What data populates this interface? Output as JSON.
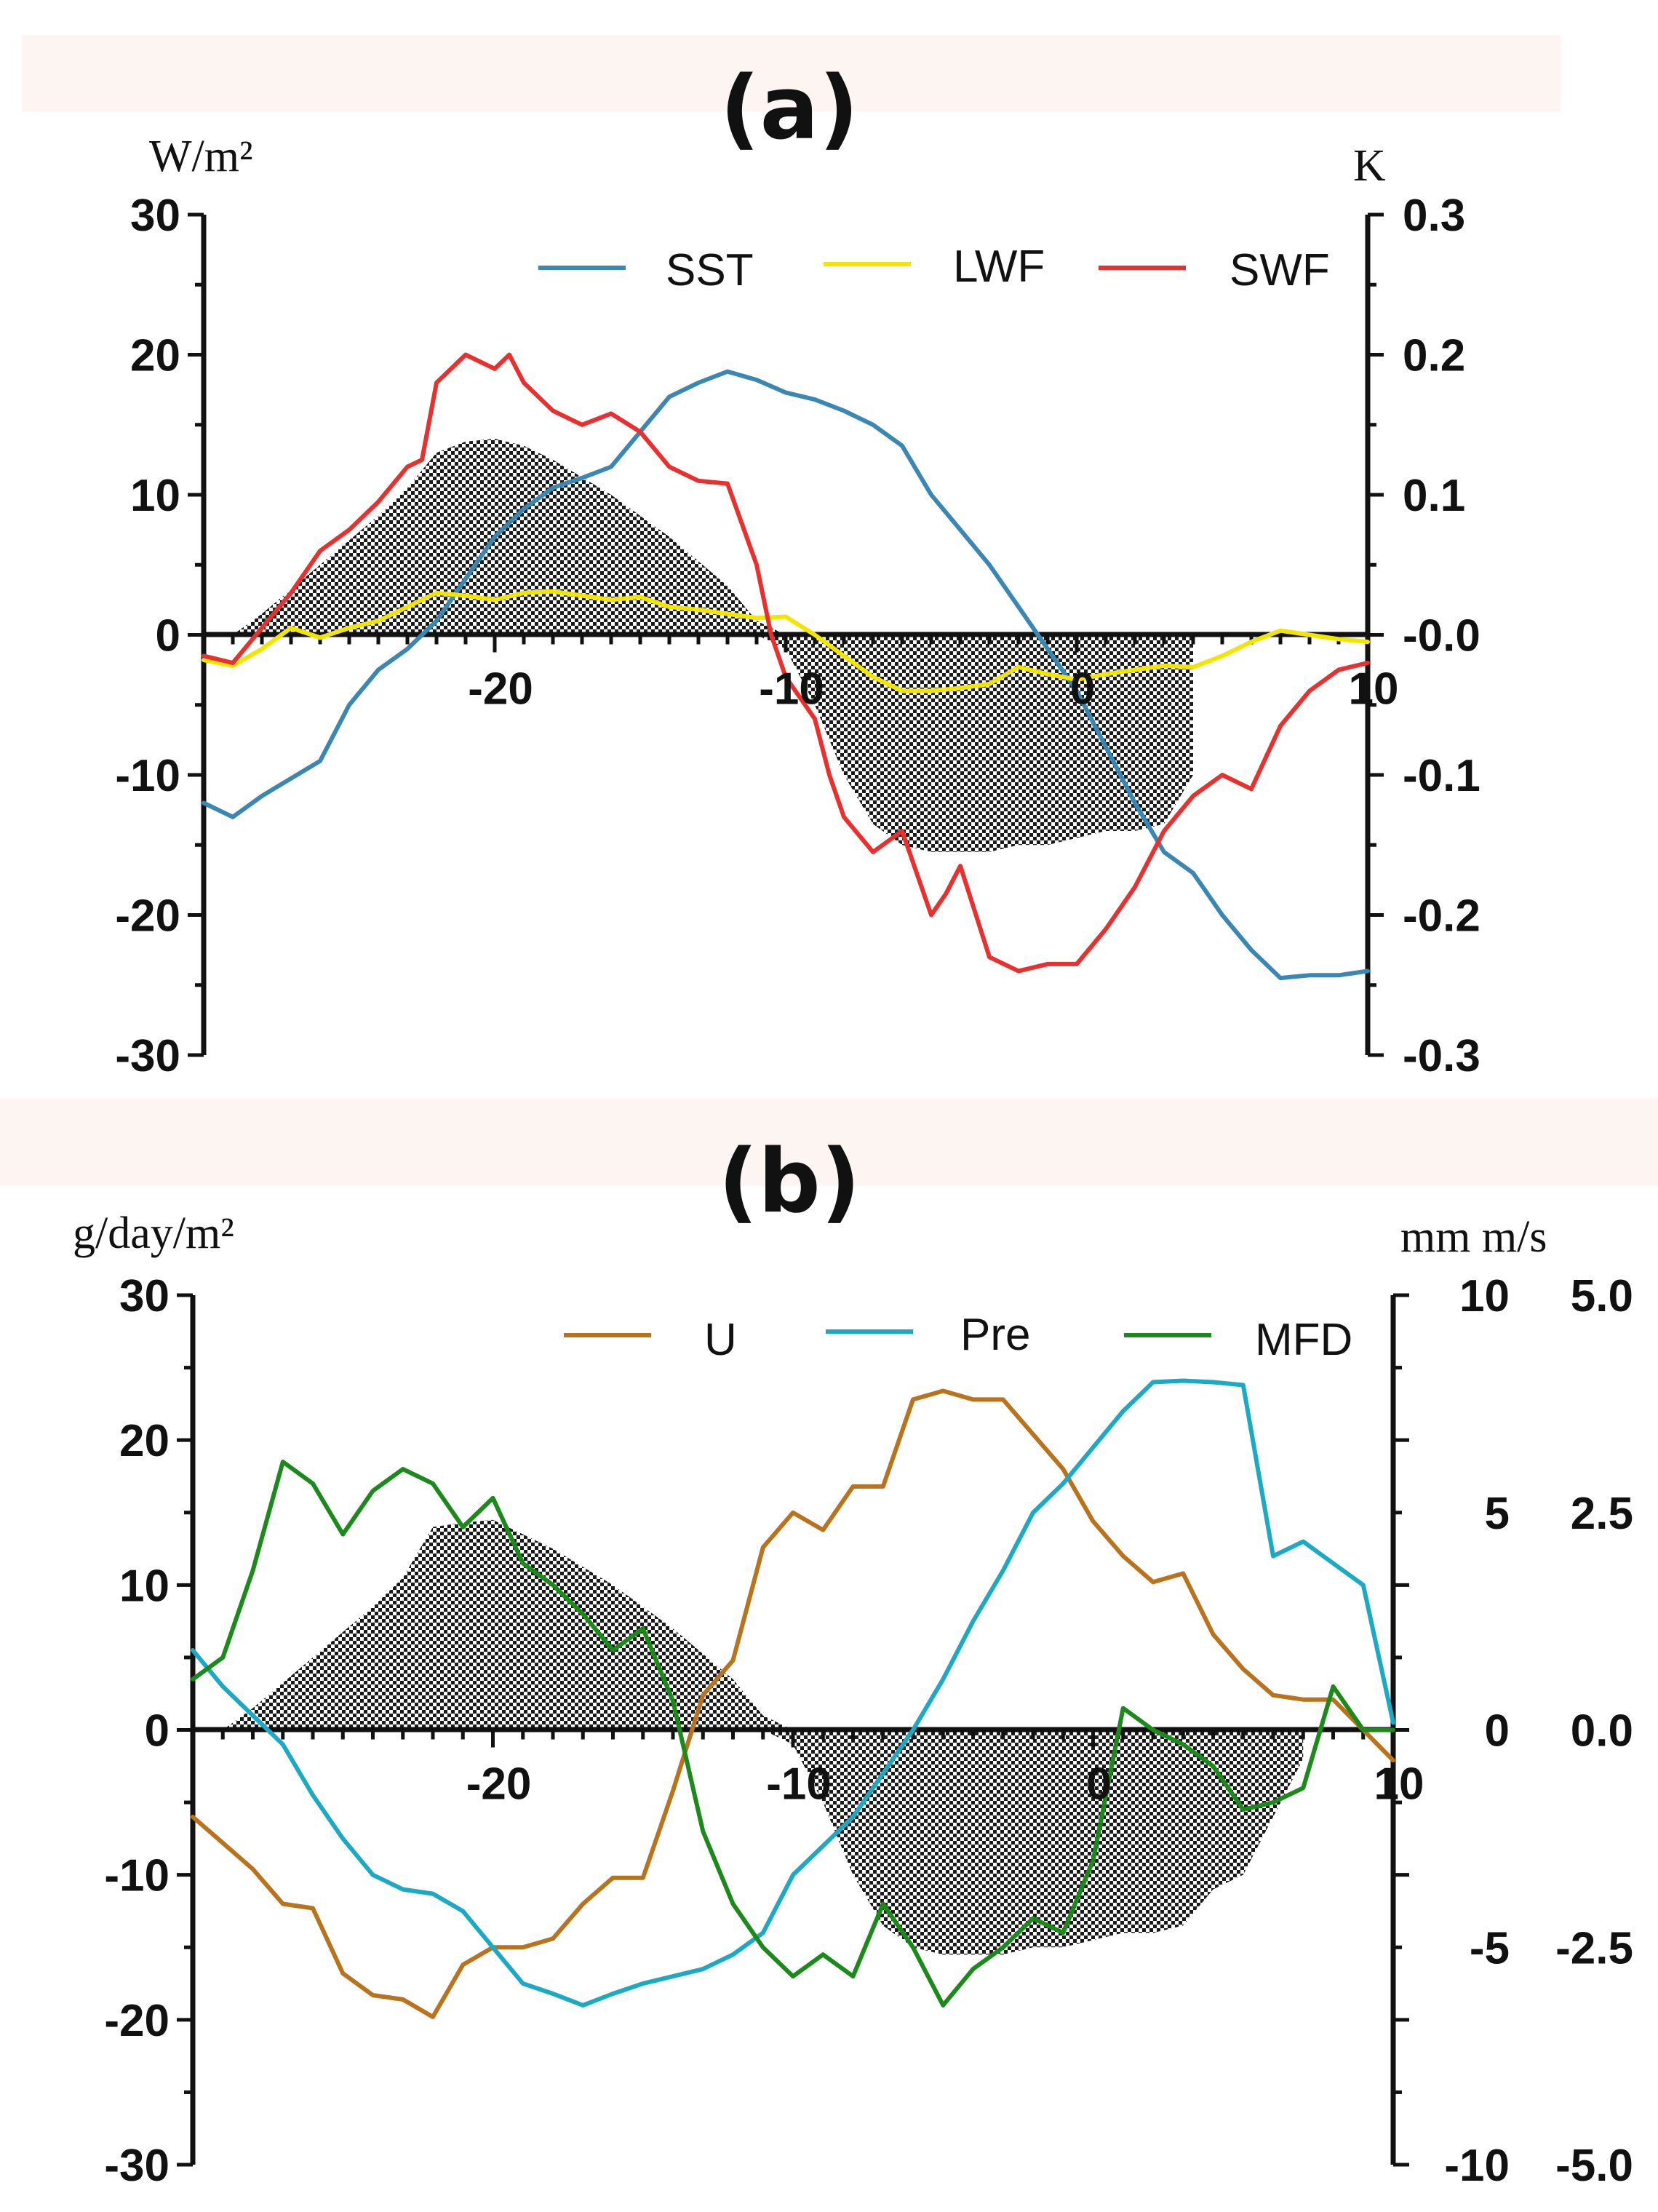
{
  "chart_data": [
    {
      "type": "line",
      "panel_label": "(a)",
      "left_unit": "W/m²",
      "right_unit": "K",
      "xlim": [
        -30,
        10
      ],
      "ylim_left": [
        -30,
        30
      ],
      "ylim_right": [
        -0.3,
        0.3
      ],
      "x_ticks": [
        -20,
        -10,
        0,
        10
      ],
      "x_tick_labels": [
        "-20",
        "-10",
        "0",
        "10"
      ],
      "y_left_ticks": [
        30,
        20,
        10,
        0,
        -10,
        -20,
        -30
      ],
      "y_left_tick_labels": [
        "30",
        "20",
        "10",
        "0",
        "-10",
        "-20",
        "-30"
      ],
      "y_right_ticks": [
        0.3,
        0.2,
        0.1,
        0.0,
        -0.1,
        -0.2,
        -0.3
      ],
      "y_right_tick_labels": [
        "0.3",
        "0.2",
        "0.1",
        "-0.0",
        "-0.1",
        "-0.2",
        "-0.3"
      ],
      "legend": [
        "SST",
        "LWF",
        "SWF"
      ],
      "shading": {
        "x": [
          -29,
          -28,
          -26,
          -24,
          -23,
          -22,
          -21,
          -20,
          -19,
          -18,
          -16,
          -14,
          -12,
          -11,
          -10,
          -9,
          -8,
          -7,
          -6,
          -5,
          -4,
          -3,
          -2,
          -1,
          0,
          1,
          2,
          3,
          4
        ],
        "upper": [
          0,
          1.5,
          5,
          8.5,
          10.5,
          13,
          13.8,
          14,
          13.5,
          12.5,
          10,
          7,
          3.5,
          1,
          0,
          0,
          0,
          0,
          0,
          0,
          0,
          0,
          0,
          0,
          0,
          0,
          0,
          0,
          0
        ],
        "lower": [
          0,
          0,
          0,
          0,
          0,
          0,
          0,
          0,
          0,
          0,
          0,
          0,
          0,
          0,
          -1,
          -5,
          -10,
          -13.5,
          -15,
          -15.5,
          -15.5,
          -15.5,
          -15,
          -15,
          -14.5,
          -14,
          -14,
          -13.5,
          -10
        ]
      },
      "series": [
        {
          "name": "SST",
          "axis": "right",
          "color": "#3a87b4",
          "x": [
            -30,
            -29,
            -28,
            -26,
            -25,
            -24,
            -23,
            -22,
            -21,
            -20,
            -19,
            -18,
            -17,
            -16,
            -15,
            -14,
            -13,
            -12,
            -11,
            -10,
            -9,
            -8,
            -7,
            -6,
            -5,
            -4,
            -3,
            -2,
            -1,
            0,
            1,
            2,
            3,
            4,
            5,
            6,
            7,
            8,
            9,
            10
          ],
          "y": [
            -0.12,
            -0.13,
            -0.115,
            -0.09,
            -0.05,
            -0.025,
            -0.01,
            0.01,
            0.04,
            0.07,
            0.09,
            0.105,
            0.112,
            0.12,
            0.145,
            0.17,
            0.18,
            0.188,
            0.182,
            0.173,
            0.168,
            0.16,
            0.15,
            0.135,
            0.1,
            0.075,
            0.05,
            0.02,
            -0.01,
            -0.04,
            -0.08,
            -0.12,
            -0.155,
            -0.17,
            -0.2,
            -0.225,
            -0.245,
            -0.243,
            -0.243,
            -0.24
          ]
        },
        {
          "name": "LWF",
          "axis": "left",
          "color": "#f2e600",
          "x": [
            -30,
            -29,
            -28,
            -27,
            -26,
            -25,
            -24,
            -23,
            -22,
            -21,
            -20,
            -19,
            -18,
            -17,
            -16,
            -15,
            -14,
            -13,
            -12,
            -11,
            -10,
            -9,
            -8,
            -7,
            -6,
            -5,
            -4,
            -3,
            -2,
            -1,
            0,
            1,
            2,
            3,
            4,
            5,
            6,
            7,
            8,
            9,
            10
          ],
          "y": [
            -1.8,
            -2.2,
            -1,
            0.5,
            -0.2,
            0.5,
            1,
            2,
            3,
            2.8,
            2.5,
            3,
            3.1,
            2.8,
            2.5,
            2.7,
            2,
            1.8,
            1.5,
            1.2,
            1.3,
            0,
            -1.5,
            -3,
            -4,
            -4,
            -3.8,
            -3.5,
            -2.3,
            -2.8,
            -3.2,
            -2.8,
            -2.5,
            -2.2,
            -2.3,
            -1.5,
            -0.5,
            0.3,
            0,
            -0.3,
            -0.5
          ]
        },
        {
          "name": "SWF",
          "axis": "left",
          "color": "#e8302e",
          "x": [
            -30,
            -29,
            -28,
            -27,
            -26,
            -25,
            -24,
            -23,
            -22.5,
            -22,
            -21,
            -20,
            -19.5,
            -19,
            -18,
            -17,
            -16,
            -15,
            -14,
            -13,
            -12,
            -11,
            -10.5,
            -10,
            -9,
            -8.5,
            -8,
            -7,
            -6,
            -5.5,
            -5,
            -4.5,
            -4,
            -3,
            -2.5,
            -2,
            -1,
            0,
            1,
            2,
            3,
            4,
            5,
            6,
            7,
            8,
            9,
            10
          ],
          "y": [
            -1.5,
            -2,
            0.5,
            3,
            6,
            7.5,
            9.5,
            12,
            12.5,
            18,
            20,
            19,
            20,
            18,
            16,
            15,
            15.8,
            14.5,
            12,
            11,
            10.8,
            5,
            0,
            -3,
            -6,
            -10,
            -13,
            -15.5,
            -14,
            -17,
            -20,
            -18.5,
            -16.5,
            -23,
            -23.5,
            -24,
            -23.5,
            -23.5,
            -21,
            -18,
            -14,
            -11.5,
            -10,
            -11,
            -6.5,
            -4,
            -2.5,
            -2
          ]
        }
      ]
    },
    {
      "type": "line",
      "panel_label": "(b)",
      "left_unit": "g/day/m²",
      "right_unit": "mm m/s",
      "xlim": [
        -30,
        10
      ],
      "ylim_left": [
        -30,
        30
      ],
      "ylim_right_mm": [
        -10,
        10
      ],
      "ylim_right_ms": [
        -5.0,
        5.0
      ],
      "x_ticks": [
        -20,
        -10,
        0,
        10
      ],
      "x_tick_labels": [
        "-20",
        "-10",
        "0",
        "10"
      ],
      "y_left_ticks": [
        30,
        20,
        10,
        0,
        -10,
        -20,
        -30
      ],
      "y_left_tick_labels": [
        "30",
        "20",
        "10",
        "0",
        "-10",
        "-20",
        "-30"
      ],
      "y_right_mm_ticks": [
        10,
        5,
        0,
        -5,
        -10
      ],
      "y_right_mm_tick_labels": [
        "10",
        "5",
        "0",
        "-5",
        "-10"
      ],
      "y_right_ms_ticks": [
        5.0,
        2.5,
        0.0,
        -2.5,
        -5.0
      ],
      "y_right_ms_tick_labels": [
        "5.0",
        "2.5",
        "0.0",
        "-2.5",
        "-5.0"
      ],
      "legend": [
        "U",
        "Pre",
        "MFD"
      ],
      "shading": {
        "x": [
          -29,
          -28,
          -26,
          -24,
          -23,
          -22,
          -21,
          -20,
          -19,
          -18,
          -16,
          -14,
          -12,
          -11,
          -10,
          -9,
          -8,
          -7,
          -6,
          -5,
          -4,
          -3,
          -2,
          -1,
          0,
          1,
          2,
          3,
          4,
          5,
          6,
          7
        ],
        "upper": [
          0,
          1.5,
          5,
          8.5,
          10.5,
          14,
          14.3,
          14.5,
          13.5,
          12.5,
          10,
          7,
          3.5,
          1,
          0,
          0,
          0,
          0,
          0,
          0,
          0,
          0,
          0,
          0,
          0,
          0,
          0,
          0,
          0,
          0,
          0,
          0
        ],
        "lower": [
          0,
          0,
          0,
          0,
          0,
          0,
          0,
          0,
          0,
          0,
          0,
          0,
          0,
          0,
          -1,
          -5,
          -10,
          -13.5,
          -15,
          -15.5,
          -15.5,
          -15.5,
          -15,
          -15,
          -14.5,
          -14,
          -14,
          -13.5,
          -11,
          -10,
          -6,
          -2
        ]
      },
      "series": [
        {
          "name": "U",
          "axis": "right",
          "color": "#b8731c",
          "x": [
            -30,
            -29,
            -28,
            -27,
            -26,
            -25,
            -24,
            -23,
            -22,
            -21,
            -20,
            -19,
            -18,
            -17,
            -16,
            -15,
            -14,
            -13,
            -12,
            -11,
            -10,
            -9,
            -8,
            -7,
            -6,
            -5,
            -4,
            -3,
            -2,
            -1,
            0,
            1,
            2,
            3,
            4,
            5,
            6,
            7,
            8,
            9,
            10
          ],
          "y": [
            -1,
            -1.3,
            -1.6,
            -2,
            -2.05,
            -2.8,
            -3.05,
            -3.1,
            -3.3,
            -2.7,
            -2.5,
            -2.5,
            -2.4,
            -2,
            -1.7,
            -1.7,
            -0.7,
            0.4,
            0.8,
            2.1,
            2.5,
            2.3,
            2.8,
            2.8,
            3.8,
            3.9,
            3.8,
            3.8,
            3.4,
            3,
            2.4,
            2,
            1.7,
            1.8,
            1.1,
            0.7,
            0.4,
            0.35,
            0.35,
            0,
            -0.35
          ]
        },
        {
          "name": "Pre",
          "axis": "left",
          "color": "#1ca9c4",
          "x": [
            -30,
            -29,
            -28,
            -27,
            -26,
            -25,
            -24,
            -23,
            -22,
            -21,
            -20,
            -19,
            -18,
            -17,
            -16,
            -15,
            -14,
            -13,
            -12,
            -11,
            -10,
            -9,
            -8,
            -7,
            -6,
            -5,
            -4,
            -3,
            -2,
            -1,
            0,
            1,
            2,
            3,
            4,
            5,
            6,
            7,
            8,
            9,
            10
          ],
          "y": [
            5.5,
            3,
            1,
            -1,
            -4.5,
            -7.5,
            -10,
            -11,
            -11.3,
            -12.5,
            -15,
            -17.5,
            -18.2,
            -19,
            -18.2,
            -17.5,
            -17,
            -16.5,
            -15.5,
            -14,
            -10,
            -8,
            -6,
            -3,
            0,
            3.5,
            7.5,
            11,
            15,
            17,
            19.5,
            22,
            24,
            24.1,
            24,
            23.8,
            12,
            13,
            11.5,
            10,
            0.5
          ]
        },
        {
          "name": "MFD",
          "axis": "left",
          "color": "#1b8a1b",
          "x": [
            -30,
            -29,
            -28,
            -27,
            -26,
            -25,
            -24,
            -23,
            -22,
            -21,
            -20,
            -19,
            -18,
            -17,
            -16,
            -15,
            -14,
            -13,
            -12,
            -11,
            -10,
            -9,
            -8,
            -7,
            -6,
            -5,
            -4,
            -3,
            -2,
            -1,
            0,
            1,
            2,
            3,
            4,
            5,
            6,
            7,
            8,
            9,
            10
          ],
          "y": [
            3.5,
            5,
            11,
            18.5,
            17,
            13.5,
            16.5,
            18,
            17,
            14,
            16,
            11.5,
            10,
            8,
            5.5,
            7,
            2,
            -7,
            -12,
            -15,
            -17,
            -15.5,
            -17,
            -12,
            -15,
            -19,
            -16.5,
            -15,
            -13,
            -14,
            -9,
            1.5,
            0,
            -1,
            -2.5,
            -5.5,
            -5,
            -4,
            3,
            0,
            0
          ]
        }
      ]
    }
  ]
}
